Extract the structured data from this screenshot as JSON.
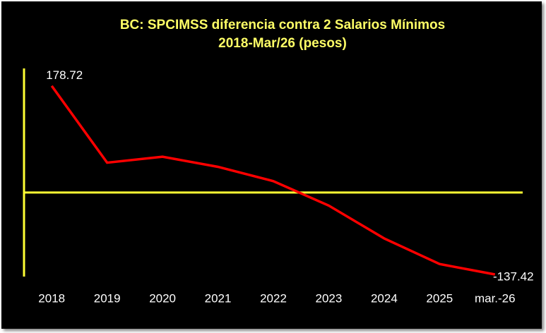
{
  "chart_data": {
    "type": "line",
    "title": "BC: SPCIMSS diferencia contra 2 Salarios Mínimos",
    "subtitle": "2018-Mar/26  (pesos)",
    "categories": [
      "2018",
      "2019",
      "2020",
      "2021",
      "2022",
      "2023",
      "2024",
      "2025",
      "mar.-26"
    ],
    "values": [
      178.72,
      50,
      60,
      43,
      19,
      -22,
      -77,
      -120,
      -137.42
    ],
    "value_labels": [
      "178.72",
      null,
      null,
      null,
      null,
      null,
      null,
      null,
      "-137.42"
    ],
    "color": "#ff0000",
    "axis_color": "#ffff33",
    "ylim": [
      -141,
      208
    ]
  }
}
